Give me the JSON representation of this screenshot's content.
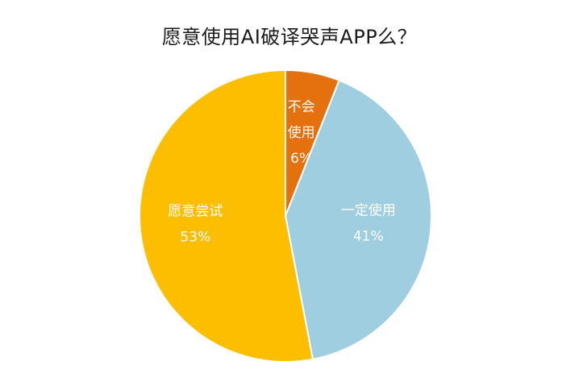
{
  "chart_data": {
    "type": "pie",
    "title": "愿意使用AI破译哭声APP么？",
    "slices": [
      {
        "name": "不会使用",
        "label_lines": [
          "不会",
          "使用",
          "6%"
        ],
        "value": 6,
        "color": "#E5700E"
      },
      {
        "name": "一定使用",
        "label_lines": [
          "一定使用",
          "41%"
        ],
        "value": 41,
        "color": "#9FCEE0"
      },
      {
        "name": "愿意尝试",
        "label_lines": [
          "愿意尝试",
          "53%"
        ],
        "value": 53,
        "color": "#FDBE00"
      }
    ],
    "start_angle_deg": 0,
    "direction": "clockwise",
    "legend": "none"
  }
}
